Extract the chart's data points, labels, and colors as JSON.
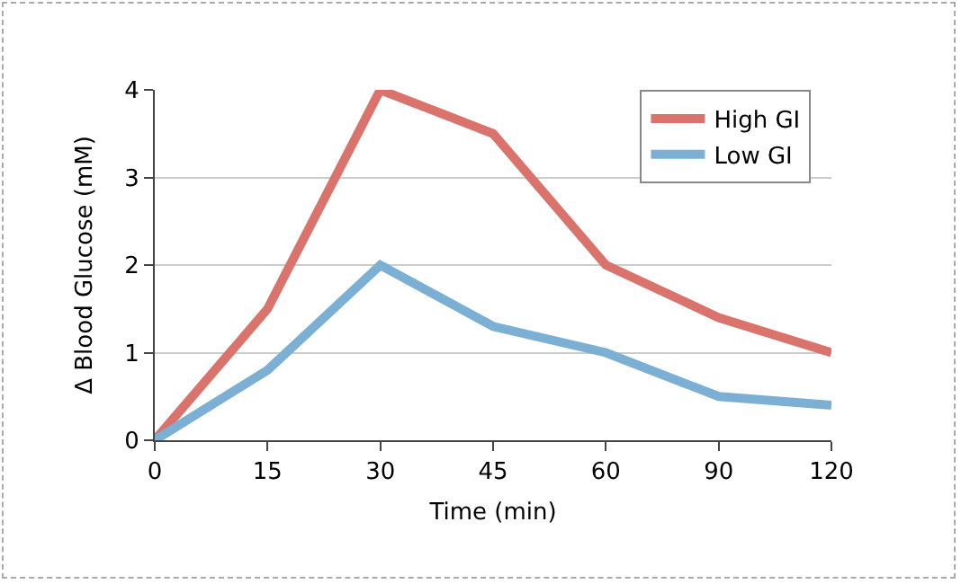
{
  "chart_data": {
    "type": "line",
    "xlabel": "Time (min)",
    "ylabel": "Δ Blood Glucose (mM)",
    "categories": [
      "0",
      "15",
      "30",
      "45",
      "60",
      "90",
      "120"
    ],
    "ylim": [
      0,
      4
    ],
    "yticks": [
      0,
      1,
      2,
      3,
      4
    ],
    "grid": "y",
    "legend": "top right",
    "marker": "none",
    "line_style": "solid",
    "series": [
      {
        "name": "High GI",
        "color": "#d9736c",
        "values": [
          0,
          1.5,
          4,
          3.5,
          2,
          1.4,
          1.0
        ]
      },
      {
        "name": "Low GI",
        "color": "#7bafd4",
        "values": [
          0,
          0.8,
          2,
          1.3,
          1,
          0.5,
          0.4
        ]
      }
    ]
  }
}
